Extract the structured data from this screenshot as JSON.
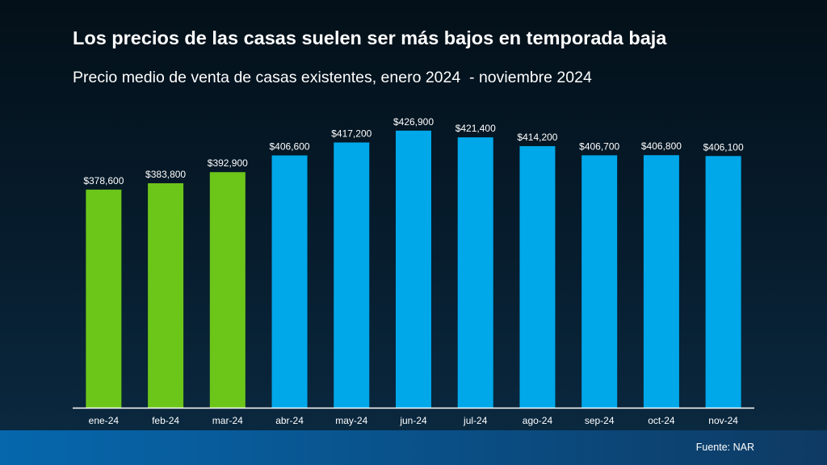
{
  "title": "Los precios de las casas suelen ser más bajos en temporada baja",
  "subtitle": "Precio medio de venta de casas existentes, enero 2024  - noviembre 2024",
  "source": "Fuente: NAR",
  "colors": {
    "offseason": "#6cc61a",
    "season": "#00a8ea",
    "axis": "#ffffff",
    "footer": "#0667ad"
  },
  "chart_data": {
    "type": "bar",
    "categories": [
      "ene-24",
      "feb-24",
      "mar-24",
      "abr-24",
      "may-24",
      "jun-24",
      "jul-24",
      "ago-24",
      "sep-24",
      "oct-24",
      "nov-24"
    ],
    "values": [
      378600,
      383800,
      392900,
      406600,
      417200,
      426900,
      421400,
      414200,
      406700,
      406800,
      406100
    ],
    "labels": [
      "$378,600",
      "$383,800",
      "$392,900",
      "$406,600",
      "$417,200",
      "$426,900",
      "$421,400",
      "$414,200",
      "$406,700",
      "$406,800",
      "$406,100"
    ],
    "bar_colors": [
      "#6cc61a",
      "#6cc61a",
      "#6cc61a",
      "#00a8ea",
      "#00a8ea",
      "#00a8ea",
      "#00a8ea",
      "#00a8ea",
      "#00a8ea",
      "#00a8ea",
      "#00a8ea"
    ],
    "ylim": [
      200000,
      440000
    ],
    "grid": false,
    "legend": "none",
    "xlabel": "",
    "ylabel": ""
  }
}
